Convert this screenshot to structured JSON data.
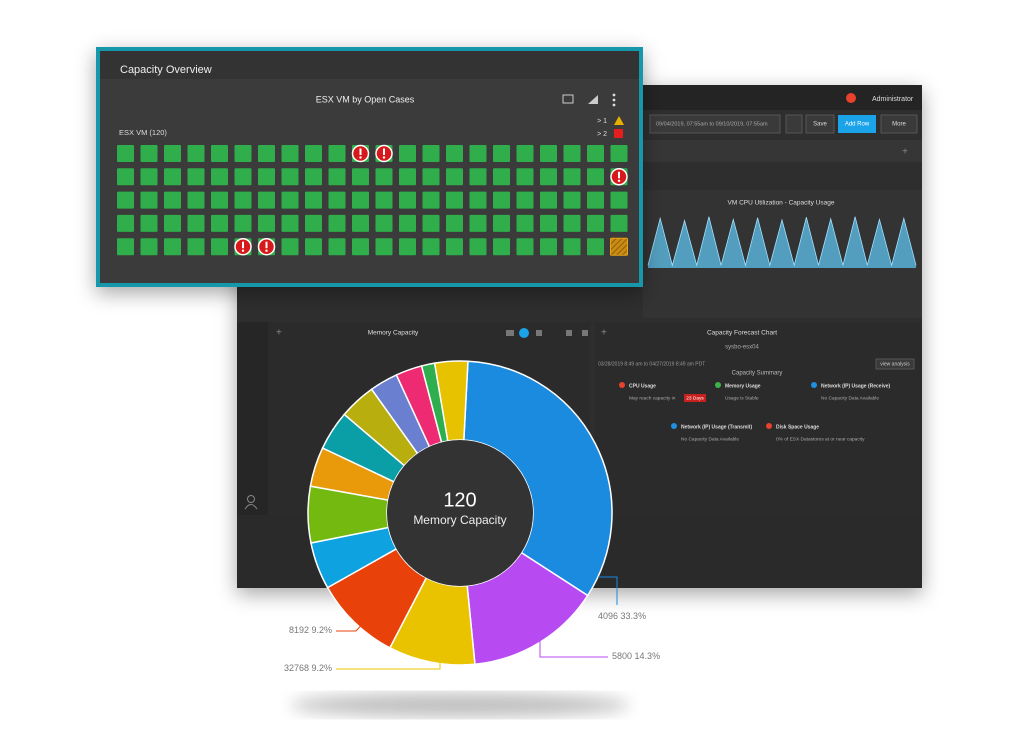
{
  "dashboard": {
    "user": "Administrator",
    "date_range": "09/04/2019, 07:55am to 09/10/2019, 07:55am",
    "buttons": [
      "Save",
      "Add Row",
      "More"
    ],
    "cpu_chart": {
      "type": "area",
      "title": "VM CPU Utilization - Capacity Usage",
      "color": "#5fc3ee",
      "values": [
        5,
        92,
        5,
        88,
        5,
        95,
        5,
        90,
        5,
        93,
        5,
        89,
        5,
        94,
        5,
        91,
        5,
        95,
        5,
        90,
        5,
        92,
        5
      ],
      "ylim": [
        0,
        100
      ]
    },
    "memory_widget_title": "Memory Capacity",
    "forecast": {
      "title": "Capacity Forecast Chart",
      "subtitle": "sysbo-esx04",
      "range": "03/28/2019 8:49 am to 04/27/2019 8:49 am PDT",
      "link": "view analysis",
      "summary_title": "Capacity Summary",
      "items": [
        {
          "name": "CPU Usage",
          "text": "May reach capacity in",
          "badge": "23 Days",
          "color": "#e8412c"
        },
        {
          "name": "Memory Usage",
          "text": "Usage is Stable",
          "color": "#3cb34a"
        },
        {
          "name": "Network (IP) Usage (Receive)",
          "text": "No Capacity Data Available",
          "color": "#1e8fe1"
        },
        {
          "name": "Network (IP) Usage (Transmit)",
          "text": "No Capacity Data Available",
          "color": "#1e8fe1"
        },
        {
          "name": "Disk Space Usage",
          "text": "0% of ESX Datastores at or near capacity",
          "color": "#e8412c"
        }
      ]
    }
  },
  "overview": {
    "title": "Capacity Overview",
    "widget_title": "ESX VM by Open Cases",
    "legend": [
      "> 1",
      "> 2"
    ],
    "group_label": "ESX VM (120)",
    "cells": [
      [
        "ok",
        "ok",
        "ok",
        "ok",
        "ok",
        "ok",
        "ok",
        "ok",
        "ok",
        "ok",
        "alert",
        "alert",
        "ok",
        "ok",
        "ok",
        "ok",
        "ok",
        "ok",
        "ok",
        "ok",
        "ok",
        "ok"
      ],
      [
        "ok",
        "ok",
        "ok",
        "ok",
        "ok",
        "ok",
        "ok",
        "ok",
        "ok",
        "ok",
        "ok",
        "ok",
        "ok",
        "ok",
        "ok",
        "ok",
        "ok",
        "ok",
        "ok",
        "ok",
        "ok",
        "alert"
      ],
      [
        "ok",
        "ok",
        "ok",
        "ok",
        "ok",
        "ok",
        "ok",
        "ok",
        "ok",
        "ok",
        "ok",
        "ok",
        "ok",
        "ok",
        "ok",
        "ok",
        "ok",
        "ok",
        "ok",
        "ok",
        "ok",
        "ok"
      ],
      [
        "ok",
        "ok",
        "ok",
        "ok",
        "ok",
        "ok",
        "ok",
        "ok",
        "ok",
        "ok",
        "ok",
        "ok",
        "ok",
        "ok",
        "ok",
        "ok",
        "ok",
        "ok",
        "ok",
        "ok",
        "ok",
        "ok"
      ],
      [
        "ok",
        "ok",
        "ok",
        "ok",
        "ok",
        "alert",
        "alert",
        "ok",
        "ok",
        "ok",
        "ok",
        "ok",
        "ok",
        "ok",
        "ok",
        "ok",
        "ok",
        "ok",
        "ok",
        "ok",
        "ok",
        "partial"
      ]
    ]
  },
  "chart_data": {
    "type": "donut",
    "center_value": 120,
    "center_label": "Memory Capacity",
    "categories": [
      "4096",
      "5800",
      "32768",
      "8192",
      null,
      null,
      null,
      null,
      null,
      null,
      null,
      null,
      null
    ],
    "values": [
      33.3,
      14.3,
      9.2,
      9.2,
      5.0,
      6.0,
      4.2,
      4.2,
      3.9,
      3.0,
      2.8,
      1.4,
      3.5
    ],
    "value_labels": [
      "33.3%",
      "14.3%",
      "9.2%",
      "9.2%",
      null,
      null,
      null,
      null,
      null,
      null,
      null,
      null,
      null
    ],
    "colors": [
      "#1b8be0",
      "#b84af2",
      "#e9c300",
      "#e8420a",
      "#0ea3e0",
      "#74b90f",
      "#e99a0b",
      "#0a9ea6",
      "#b8ae0e",
      "#6a7fd0",
      "#ee2b72",
      "#2fae4e",
      "#e6c200"
    ]
  }
}
